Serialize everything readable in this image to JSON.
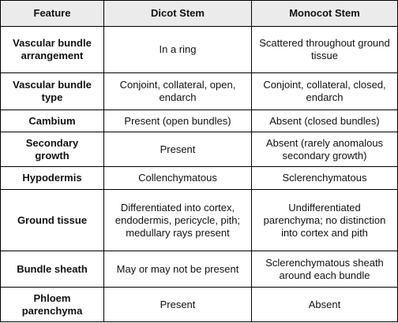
{
  "table": {
    "header": [
      "Feature",
      "Dicot Stem",
      "Monocot Stem"
    ],
    "rows": [
      [
        "Vascular bundle arrangement",
        "In a ring",
        "Scattered throughout ground tissue"
      ],
      [
        "Vascular bundle type",
        "Conjoint, collateral, open, endarch",
        "Conjoint, collateral, closed, endarch"
      ],
      [
        "Cambium",
        "Present (open bundles)",
        "Absent (closed bundles)"
      ],
      [
        "Secondary growth",
        "Present",
        "Absent (rarely anomalous secondary growth)"
      ],
      [
        "Hypodermis",
        "Collenchymatous",
        "Sclerenchymatous"
      ],
      [
        "Ground tissue",
        "Differentiated into cortex, endodermis, pericycle, pith; medullary rays present",
        "Undifferentiated parenchyma; no distinction into cortex and pith"
      ],
      [
        "Bundle sheath",
        "May or may not be present",
        "Sclerenchymatous sheath around each bundle"
      ],
      [
        "Phloem parenchyma",
        "Present",
        "Absent"
      ]
    ]
  }
}
